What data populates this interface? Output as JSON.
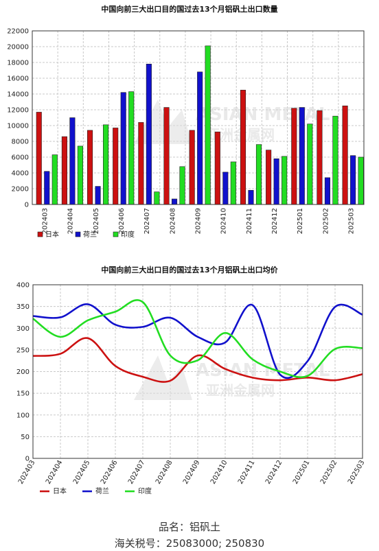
{
  "chart_data": [
    {
      "type": "bar",
      "title": "中国向前三大出口目的国过去13个月铝矾土出口数量",
      "categories": [
        "202403",
        "202404",
        "202405",
        "202406",
        "202407",
        "202408",
        "202409",
        "202410",
        "202411",
        "202412",
        "202501",
        "202502",
        "202503"
      ],
      "series": [
        {
          "name": "日本",
          "color": "#cc1111",
          "values": [
            11700,
            8600,
            9400,
            9700,
            10400,
            12300,
            9400,
            9200,
            14500,
            6900,
            12200,
            11900,
            12500
          ]
        },
        {
          "name": "荷兰",
          "color": "#1111cc",
          "values": [
            4200,
            11000,
            2300,
            14200,
            17800,
            700,
            16800,
            4100,
            1800,
            5800,
            12300,
            3400,
            6200
          ]
        },
        {
          "name": "印度",
          "color": "#22dd22",
          "values": [
            6300,
            7400,
            10100,
            14300,
            1600,
            4800,
            20100,
            5400,
            7600,
            6100,
            10200,
            11200,
            6000
          ]
        }
      ],
      "ylim": [
        0,
        22000
      ],
      "yticks": [
        0,
        2000,
        4000,
        6000,
        8000,
        10000,
        12000,
        14000,
        16000,
        18000,
        20000,
        22000
      ],
      "grid": true,
      "legend_position": "bottom-left"
    },
    {
      "type": "line",
      "title": "中国向前三大出口目的国过去13个月铝矾土出口均价",
      "categories": [
        "202403",
        "202404",
        "202405",
        "202406",
        "202407",
        "202408",
        "202409",
        "202410",
        "202411",
        "202412",
        "202501",
        "202502",
        "202503"
      ],
      "series": [
        {
          "name": "日本",
          "color": "#cc1111",
          "values": [
            236,
            241,
            277,
            213,
            188,
            179,
            237,
            206,
            186,
            180,
            186,
            180,
            194
          ]
        },
        {
          "name": "荷兰",
          "color": "#1111cc",
          "values": [
            328,
            325,
            355,
            308,
            303,
            324,
            280,
            267,
            353,
            193,
            224,
            349,
            331
          ]
        },
        {
          "name": "印度",
          "color": "#22dd22",
          "values": [
            322,
            280,
            318,
            338,
            360,
            237,
            226,
            289,
            228,
            200,
            190,
            252,
            254
          ]
        }
      ],
      "ylim": [
        0,
        400
      ],
      "yticks": [
        0,
        50,
        100,
        150,
        200,
        250,
        300,
        350,
        400
      ],
      "grid": true,
      "legend_position": "bottom-left"
    }
  ],
  "watermark": {
    "en": "ASIAN METAL",
    "cn": "亚洲金属网"
  },
  "footer": {
    "product": "品名：铝矾土",
    "hs_code": "海关税号：25083000; 250830"
  }
}
